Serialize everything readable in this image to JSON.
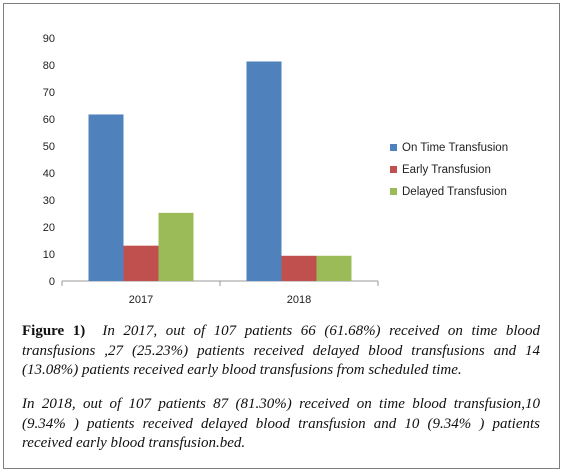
{
  "chart_data": {
    "type": "bar",
    "categories": [
      "2017",
      "2018"
    ],
    "series": [
      {
        "name": "On Time Transfusion",
        "values": [
          61.68,
          81.3
        ],
        "color": "#4f81bd"
      },
      {
        "name": "Early Transfusion",
        "values": [
          13.08,
          9.34
        ],
        "color": "#c0504d"
      },
      {
        "name": "Delayed Transfusion",
        "values": [
          25.23,
          9.34
        ],
        "color": "#9bbb59"
      }
    ],
    "ylim": [
      0,
      90
    ],
    "yticks": [
      0,
      10,
      20,
      30,
      40,
      50,
      60,
      70,
      80,
      90
    ],
    "grid": false,
    "legend_position": "right",
    "title": "",
    "xlabel": "",
    "ylabel": ""
  },
  "caption": {
    "label": "Figure 1)",
    "p1_lines": [
      "In 2017, out of 107 patients  66 (61.68%) received on time blood",
      "transfusions ,27 (25.23%) patients received delayed blood transfusions  and 14",
      "(13.08%) patients received early blood  transfusions from scheduled time."
    ],
    "p2_lines": [
      "In 2018, out of 107 patients 87 (81.30%) received on time blood transfusion,10",
      "(9.34% ) patients received delayed blood transfusion and 10 (9.34% ) patients",
      "received early blood transfusion.bed."
    ]
  }
}
